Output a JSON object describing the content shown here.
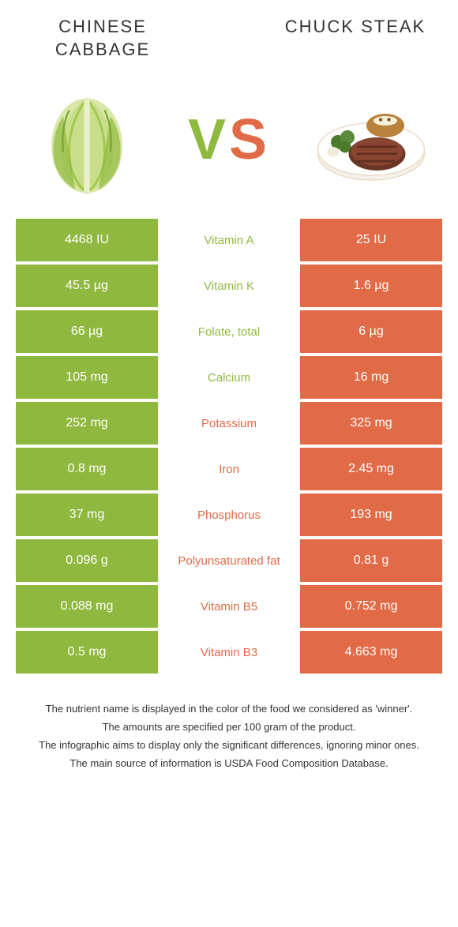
{
  "left_food": {
    "title": "Chinese Cabbage",
    "color": "#8fb93e"
  },
  "right_food": {
    "title": "Chuck Steak",
    "color": "#e16a47"
  },
  "vs_label": {
    "v": "V",
    "s": "S"
  },
  "rows": [
    {
      "left": "4468 IU",
      "label": "Vitamin A",
      "right": "25 IU",
      "winner": "left"
    },
    {
      "left": "45.5 µg",
      "label": "Vitamin K",
      "right": "1.6 µg",
      "winner": "left"
    },
    {
      "left": "66 µg",
      "label": "Folate, total",
      "right": "6 µg",
      "winner": "left"
    },
    {
      "left": "105 mg",
      "label": "Calcium",
      "right": "16 mg",
      "winner": "left"
    },
    {
      "left": "252 mg",
      "label": "Potassium",
      "right": "325 mg",
      "winner": "right"
    },
    {
      "left": "0.8 mg",
      "label": "Iron",
      "right": "2.45 mg",
      "winner": "right"
    },
    {
      "left": "37 mg",
      "label": "Phosphorus",
      "right": "193 mg",
      "winner": "right"
    },
    {
      "left": "0.096 g",
      "label": "Polyunsaturated fat",
      "right": "0.81 g",
      "winner": "right"
    },
    {
      "left": "0.088 mg",
      "label": "Vitamin B5",
      "right": "0.752 mg",
      "winner": "right"
    },
    {
      "left": "0.5 mg",
      "label": "Vitamin B3",
      "right": "4.663 mg",
      "winner": "right"
    }
  ],
  "footnotes": [
    "The nutrient name is displayed in the color of the food we considered as 'winner'.",
    "The amounts are specified per 100 gram of the product.",
    "The infographic aims to display only the significant differences, ignoring minor ones.",
    "The main source of information is USDA Food Composition Database."
  ],
  "colors": {
    "left_bg": "#8fb93e",
    "right_bg": "#e16a47",
    "text_white": "#ffffff",
    "body_text": "#333333"
  }
}
